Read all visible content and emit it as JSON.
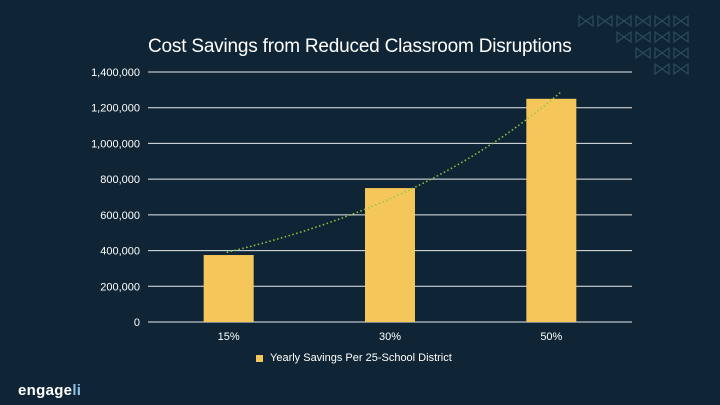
{
  "chart_data": {
    "type": "bar",
    "title": "Cost Savings from Reduced Classroom Disruptions",
    "categories": [
      "15%",
      "30%",
      "50%"
    ],
    "series": [
      {
        "name": "Yearly Savings Per 25-School District",
        "values": [
          375000,
          750000,
          1250000
        ]
      }
    ],
    "trendline": {
      "type": "exponential",
      "values": [
        390000,
        700000,
        1290000
      ]
    },
    "ylim": [
      0,
      1400000
    ],
    "yticks": [
      "0",
      "200,000",
      "400,000",
      "600,000",
      "800,000",
      "1,000,000",
      "1,200,000",
      "1,400,000"
    ],
    "ytick_values": [
      0,
      200000,
      400000,
      600000,
      800000,
      1000000,
      1200000,
      1400000
    ],
    "grid": true,
    "legend_position": "bottom"
  },
  "colors": {
    "background": "#0f2535",
    "bar": "#f5c65a",
    "trendline": "#8fc945",
    "grid": "#ffffff",
    "text": "#ffffff",
    "deco": "#2d4a5e"
  },
  "logo": {
    "main": "engage",
    "accent": "li"
  },
  "decoration_icon": "bowtie-pattern-icon"
}
